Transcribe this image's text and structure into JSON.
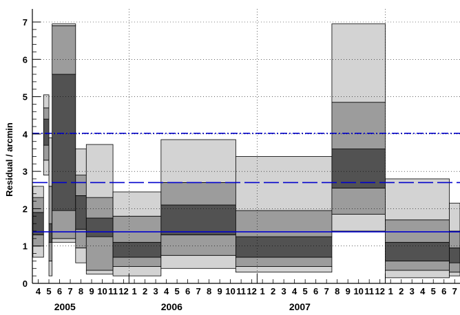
{
  "chart_data": {
    "type": "bar",
    "ylabel": "Residual / arcmin",
    "ylim": [
      0,
      7.35
    ],
    "yticks": [
      0,
      1,
      2,
      3,
      4,
      5,
      6,
      7
    ],
    "month_index_range": [
      3,
      31
    ],
    "years": [
      {
        "label": "2005",
        "center_month_index": 6.5
      },
      {
        "label": "2006",
        "center_month_index": 16.5
      },
      {
        "label": "2007",
        "center_month_index": 28.5
      }
    ],
    "month_ticks": [
      {
        "label": "4",
        "month_index": 4
      },
      {
        "label": "5",
        "month_index": 5
      },
      {
        "label": "6",
        "month_index": 6
      },
      {
        "label": "7",
        "month_index": 7
      },
      {
        "label": "8",
        "month_index": 8
      },
      {
        "label": "9",
        "month_index": 9
      },
      {
        "label": "10",
        "month_index": 10
      },
      {
        "label": "11",
        "month_index": 11
      },
      {
        "label": "12",
        "month_index": 12
      },
      {
        "label": "1",
        "month_index": 13
      },
      {
        "label": "2",
        "month_index": 14
      },
      {
        "label": "3",
        "month_index": 15
      },
      {
        "label": "4",
        "month_index": 16
      },
      {
        "label": "5",
        "month_index": 17
      },
      {
        "label": "6",
        "month_index": 18
      },
      {
        "label": "7",
        "month_index": 19
      },
      {
        "label": "8",
        "month_index": 20
      },
      {
        "label": "9",
        "month_index": 21
      },
      {
        "label": "10",
        "month_index": 22
      },
      {
        "label": "11",
        "month_index": 23
      },
      {
        "label": "12",
        "month_index": 24
      },
      {
        "label": "1",
        "month_index": 25
      },
      {
        "label": "2",
        "month_index": 26
      },
      {
        "label": "3",
        "month_index": 27
      },
      {
        "label": "4",
        "month_index": 28
      },
      {
        "label": "5",
        "month_index": 29
      },
      {
        "label": "6",
        "month_index": 30
      },
      {
        "label": "7",
        "month_index": 31
      },
      {
        "label": "8",
        "month_index": 32
      },
      {
        "label": "9",
        "month_index": 33
      },
      {
        "label": "10",
        "month_index": 34
      },
      {
        "label": "11",
        "month_index": 35
      },
      {
        "label": "12",
        "month_index": 36
      },
      {
        "label": "1",
        "month_index": 37
      },
      {
        "label": "2",
        "month_index": 38
      },
      {
        "label": "3",
        "month_index": 39
      },
      {
        "label": "4",
        "month_index": 40
      },
      {
        "label": "5",
        "month_index": 41
      },
      {
        "label": "6",
        "month_index": 42
      },
      {
        "label": "7",
        "month_index": 43
      }
    ],
    "year_boundaries": [
      12.5,
      24.5,
      36.5
    ],
    "band_colors": [
      "#d3d3d3",
      "#9c9c9c",
      "#525252"
    ],
    "bins": [
      {
        "from": 3.5,
        "to": 4.5,
        "bands": [
          0.7,
          1.0,
          1.3,
          1.9,
          2.3,
          2.6
        ]
      },
      {
        "from": 4.5,
        "to": 5.0,
        "bands": [
          2.9,
          3.3,
          3.7,
          4.4,
          4.7,
          5.05
        ]
      },
      {
        "from": 5.0,
        "to": 5.3,
        "bands": [
          0.2,
          0.6,
          1.1,
          1.6,
          2.6,
          3.9
        ]
      },
      {
        "from": 5.3,
        "to": 7.5,
        "bands": [
          1.1,
          1.2,
          1.95,
          5.6,
          6.9,
          6.95
        ]
      },
      {
        "from": 7.5,
        "to": 8.5,
        "bands": [
          0.55,
          0.95,
          1.45,
          2.35,
          2.9,
          3.6
        ]
      },
      {
        "from": 8.5,
        "to": 11.0,
        "bands": [
          0.25,
          0.35,
          1.25,
          1.75,
          2.3,
          3.72
        ]
      },
      {
        "from": 11.0,
        "to": 15.5,
        "bands": [
          0.2,
          0.45,
          0.7,
          1.1,
          1.8,
          2.45
        ]
      },
      {
        "from": 15.5,
        "to": 22.5,
        "bands": [
          0.4,
          0.75,
          1.3,
          2.1,
          2.7,
          3.85
        ]
      },
      {
        "from": 22.5,
        "to": 31.5,
        "bands": [
          0.3,
          0.45,
          0.7,
          1.25,
          1.95,
          3.4
        ]
      },
      {
        "from": 31.5,
        "to": 36.5,
        "bands": [
          1.4,
          1.85,
          2.55,
          3.6,
          4.85,
          6.95
        ]
      },
      {
        "from": 36.5,
        "to": 42.5,
        "bands": [
          0.15,
          0.35,
          0.6,
          1.1,
          1.7,
          2.8
        ]
      },
      {
        "from": 42.5,
        "to": 43.5,
        "bands": [
          0.2,
          0.3,
          0.55,
          0.95,
          1.4,
          2.15
        ]
      }
    ],
    "reference_lines": [
      {
        "value": 1.38,
        "style": "solid",
        "color": "#0000cc"
      },
      {
        "value": 2.7,
        "style": "dashed",
        "color": "#0000cc"
      },
      {
        "value": 4.02,
        "style": "dash-dot",
        "color": "#0000cc"
      }
    ],
    "grid": true
  }
}
